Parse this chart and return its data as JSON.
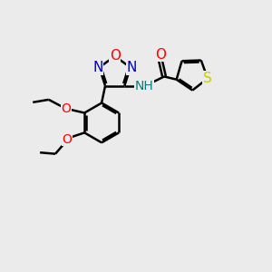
{
  "background_color": "#ebebeb",
  "bond_color": "#000000",
  "atom_colors": {
    "O": "#ff0000",
    "N": "#0000cc",
    "S": "#cccc00",
    "C": "#000000",
    "H": "#000000",
    "NH": "#008080"
  },
  "lw": 1.8,
  "fs": 10
}
